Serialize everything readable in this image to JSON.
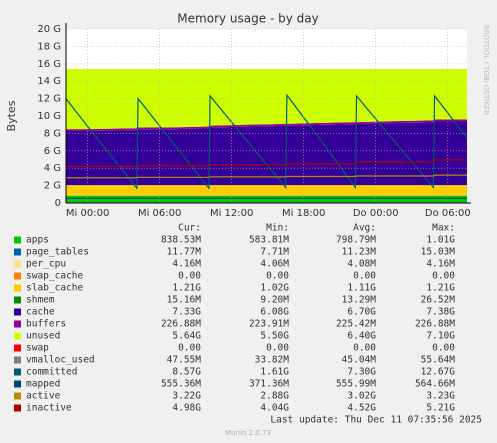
{
  "chart_data": {
    "type": "area",
    "title": "Memory usage - by day",
    "ylabel": "Bytes",
    "side_text": "RRDTOOL / TOBI OETIKER",
    "x": [
      -1.8,
      0,
      4.1,
      4.2,
      7,
      10.1,
      10.2,
      13,
      16.5,
      16.6,
      19,
      22.3,
      22.4,
      25,
      28.8,
      28.9,
      31.6
    ],
    "xlim": [
      -1.8,
      31.6
    ],
    "xticks": [
      {
        "value": 0,
        "label": "Mi 00:00"
      },
      {
        "value": 6,
        "label": "Mi 06:00"
      },
      {
        "value": 12,
        "label": "Mi 12:00"
      },
      {
        "value": 18,
        "label": "Mi 18:00"
      },
      {
        "value": 24,
        "label": "Do 00:00"
      },
      {
        "value": 30,
        "label": "Do 06:00"
      }
    ],
    "ylim": [
      0,
      20
    ],
    "yticks": [
      {
        "value": 0,
        "label": "0"
      },
      {
        "value": 2,
        "label": "2 G"
      },
      {
        "value": 4,
        "label": "4 G"
      },
      {
        "value": 6,
        "label": "6 G"
      },
      {
        "value": 8,
        "label": "8 G"
      },
      {
        "value": 10,
        "label": "10 G"
      },
      {
        "value": 12,
        "label": "12 G"
      },
      {
        "value": 14,
        "label": "14 G"
      },
      {
        "value": 16,
        "label": "16 G"
      },
      {
        "value": 18,
        "label": "18 G"
      },
      {
        "value": 20,
        "label": "20 G"
      }
    ],
    "grid": true,
    "stat_headers": [
      "Cur:",
      "Min:",
      "Avg:",
      "Max:"
    ],
    "series": [
      {
        "name": "apps",
        "color": "#00cc00",
        "draw": "area",
        "stats": [
          "838.53M",
          "583.81M",
          "798.79M",
          "1.01G"
        ],
        "values": [
          0.84,
          0.84,
          0.84,
          0.84,
          0.84,
          0.84,
          0.84,
          0.84,
          0.84,
          0.84,
          0.84,
          0.84,
          0.84,
          0.84,
          0.84,
          0.84,
          0.84
        ]
      },
      {
        "name": "page_tables",
        "color": "#0066b3",
        "draw": "area",
        "stats": [
          "11.77M",
          "7.71M",
          "11.23M",
          "15.03M"
        ],
        "values": [
          0.012,
          0.012,
          0.012,
          0.012,
          0.012,
          0.012,
          0.012,
          0.012,
          0.012,
          0.012,
          0.012,
          0.012,
          0.012,
          0.012,
          0.012,
          0.012,
          0.012
        ]
      },
      {
        "name": "per_cpu",
        "color": "#ffe080",
        "draw": "area",
        "stats": [
          "4.16M",
          "4.06M",
          "4.08M",
          "4.16M"
        ],
        "values": [
          0.004,
          0.004,
          0.004,
          0.004,
          0.004,
          0.004,
          0.004,
          0.004,
          0.004,
          0.004,
          0.004,
          0.004,
          0.004,
          0.004,
          0.004,
          0.004,
          0.004
        ]
      },
      {
        "name": "swap_cache",
        "color": "#ff8000",
        "draw": "area",
        "stats": [
          "0.00",
          "0.00",
          "0.00",
          "0.00"
        ],
        "values": [
          0,
          0,
          0,
          0,
          0,
          0,
          0,
          0,
          0,
          0,
          0,
          0,
          0,
          0,
          0,
          0,
          0
        ]
      },
      {
        "name": "slab_cache",
        "color": "#ffcc00",
        "draw": "area",
        "stats": [
          "1.21G",
          "1.02G",
          "1.11G",
          "1.21G"
        ],
        "values": [
          1.2,
          1.2,
          1.2,
          1.2,
          1.2,
          1.2,
          1.2,
          1.2,
          1.2,
          1.2,
          1.2,
          1.2,
          1.2,
          1.2,
          1.2,
          1.2,
          1.2
        ]
      },
      {
        "name": "shmem",
        "color": "#008f00",
        "draw": "area",
        "stats": [
          "15.16M",
          "9.20M",
          "13.29M",
          "26.52M"
        ],
        "values": [
          0.015,
          0.015,
          0.015,
          0.015,
          0.015,
          0.015,
          0.015,
          0.015,
          0.015,
          0.015,
          0.015,
          0.015,
          0.015,
          0.015,
          0.015,
          0.015,
          0.015
        ]
      },
      {
        "name": "cache",
        "color": "#330099",
        "draw": "area",
        "stats": [
          "7.33G",
          "6.08G",
          "6.70G",
          "7.38G"
        ],
        "values": [
          6.2,
          6.2,
          6.3,
          6.4,
          6.4,
          6.5,
          6.6,
          6.7,
          6.8,
          6.8,
          6.9,
          7.0,
          7.0,
          7.1,
          7.2,
          7.3,
          7.3
        ]
      },
      {
        "name": "buffers",
        "color": "#990099",
        "draw": "area",
        "stats": [
          "226.88M",
          "223.91M",
          "225.42M",
          "226.88M"
        ],
        "values": [
          0.22,
          0.22,
          0.22,
          0.22,
          0.22,
          0.22,
          0.22,
          0.22,
          0.22,
          0.22,
          0.22,
          0.22,
          0.22,
          0.22,
          0.22,
          0.22,
          0.22
        ]
      },
      {
        "name": "unused",
        "color": "#ccff00",
        "draw": "area",
        "stats": [
          "5.64G",
          "5.50G",
          "6.40G",
          "7.10G"
        ],
        "values": [
          6.91,
          6.91,
          6.81,
          6.71,
          6.71,
          6.61,
          6.51,
          6.41,
          6.31,
          6.31,
          6.21,
          6.11,
          6.11,
          6.01,
          5.91,
          5.81,
          5.81
        ]
      },
      {
        "name": "swap",
        "color": "#ff0000",
        "draw": "area",
        "stats": [
          "0.00",
          "0.00",
          "0.00",
          "0.00"
        ],
        "values": [
          0,
          0,
          0,
          0,
          0,
          0,
          0,
          0,
          0,
          0,
          0,
          0,
          0,
          0,
          0,
          0,
          0
        ]
      },
      {
        "name": "vmalloc_used",
        "color": "#808080",
        "draw": "line",
        "stats": [
          "47.55M",
          "33.82M",
          "45.04M",
          "55.64M"
        ],
        "values": [
          0.045,
          0.045,
          0.045,
          0.045,
          0.045,
          0.045,
          0.045,
          0.045,
          0.045,
          0.045,
          0.045,
          0.045,
          0.045,
          0.045,
          0.045,
          0.045,
          0.045
        ]
      },
      {
        "name": "committed",
        "color": "#005a6e",
        "draw": "line",
        "stats": [
          "8.57G",
          "1.61G",
          "7.30G",
          "12.67G"
        ],
        "values": [
          12,
          8.8,
          1.7,
          12,
          7.1,
          1.7,
          12.3,
          7.6,
          1.8,
          12.4,
          8.0,
          1.8,
          12.3,
          8.0,
          1.8,
          12.3,
          7.5
        ]
      },
      {
        "name": "mapped",
        "color": "#00487d",
        "draw": "line",
        "stats": [
          "555.36M",
          "371.36M",
          "555.99M",
          "564.66M"
        ],
        "values": [
          0.55,
          0.55,
          0.55,
          0.55,
          0.55,
          0.55,
          0.55,
          0.55,
          0.55,
          0.55,
          0.55,
          0.55,
          0.55,
          0.55,
          0.55,
          0.55,
          0.55
        ]
      },
      {
        "name": "active",
        "color": "#b38f00",
        "draw": "line",
        "stats": [
          "3.22G",
          "2.88G",
          "3.02G",
          "3.23G"
        ],
        "values": [
          2.9,
          2.9,
          2.9,
          2.95,
          2.95,
          2.95,
          3.0,
          3.0,
          3.0,
          3.05,
          3.05,
          3.05,
          3.1,
          3.1,
          3.1,
          3.2,
          3.2
        ]
      },
      {
        "name": "inactive",
        "color": "#b30000",
        "draw": "line",
        "stats": [
          "4.98G",
          "4.04G",
          "4.52G",
          "5.21G"
        ],
        "values": [
          4.2,
          4.2,
          4.2,
          4.3,
          4.3,
          4.3,
          4.4,
          4.4,
          4.4,
          4.5,
          4.5,
          4.5,
          4.7,
          4.7,
          4.7,
          4.95,
          4.95
        ]
      }
    ],
    "last_update": "Last update: Thu Dec 11 07:35:56 2025",
    "footer": "Munin 2.0.73"
  }
}
